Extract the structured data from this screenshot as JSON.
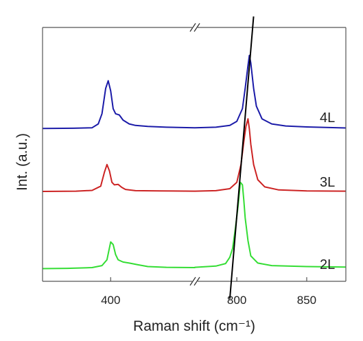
{
  "chart_data": {
    "type": "line",
    "xlabel": "Raman shift (cm⁻¹)",
    "ylabel": "Int. (a.u.)",
    "title": "",
    "x_axis_break": true,
    "x_segments": [
      {
        "xlim": [
          345,
          468
        ],
        "ticks": [
          {
            "value": 400,
            "label": "400"
          }
        ]
      },
      {
        "xlim": [
          770,
          878
        ],
        "ticks": [
          {
            "value": 800,
            "label": "800"
          },
          {
            "value": 850,
            "label": "850"
          }
        ]
      }
    ],
    "ylim": [
      0,
      10
    ],
    "grid": false,
    "legend": "none",
    "series": [
      {
        "name": "4L",
        "color": "#1a1aa8",
        "baseline": 6.02,
        "seg1": [
          [
            345,
            6.02
          ],
          [
            370,
            6.03
          ],
          [
            385,
            6.05
          ],
          [
            390,
            6.2
          ],
          [
            393,
            6.6
          ],
          [
            396,
            7.6
          ],
          [
            398,
            7.9
          ],
          [
            400,
            7.5
          ],
          [
            402,
            6.8
          ],
          [
            404,
            6.6
          ],
          [
            407,
            6.55
          ],
          [
            410,
            6.35
          ],
          [
            415,
            6.2
          ],
          [
            420,
            6.14
          ],
          [
            430,
            6.1
          ],
          [
            445,
            6.07
          ],
          [
            468,
            6.05
          ]
        ],
        "seg2": [
          [
            770,
            6.05
          ],
          [
            785,
            6.07
          ],
          [
            795,
            6.14
          ],
          [
            800,
            6.3
          ],
          [
            804,
            6.8
          ],
          [
            806,
            7.6
          ],
          [
            808,
            8.5
          ],
          [
            809,
            8.9
          ],
          [
            810,
            8.6
          ],
          [
            812,
            7.6
          ],
          [
            814,
            6.9
          ],
          [
            818,
            6.4
          ],
          [
            825,
            6.2
          ],
          [
            835,
            6.12
          ],
          [
            850,
            6.08
          ],
          [
            878,
            6.04
          ]
        ]
      },
      {
        "name": "3L",
        "color": "#cc2222",
        "baseline": 3.54,
        "seg1": [
          [
            345,
            3.54
          ],
          [
            372,
            3.55
          ],
          [
            385,
            3.58
          ],
          [
            392,
            3.75
          ],
          [
            395,
            4.3
          ],
          [
            397,
            4.6
          ],
          [
            399,
            4.35
          ],
          [
            401,
            3.9
          ],
          [
            403,
            3.8
          ],
          [
            406,
            3.82
          ],
          [
            409,
            3.7
          ],
          [
            412,
            3.62
          ],
          [
            420,
            3.57
          ],
          [
            440,
            3.56
          ],
          [
            468,
            3.55
          ]
        ],
        "seg2": [
          [
            770,
            3.55
          ],
          [
            785,
            3.57
          ],
          [
            795,
            3.65
          ],
          [
            800,
            3.9
          ],
          [
            803,
            4.6
          ],
          [
            805,
            5.5
          ],
          [
            806.5,
            6.1
          ],
          [
            808,
            6.4
          ],
          [
            809,
            6.0
          ],
          [
            810,
            5.4
          ],
          [
            812,
            4.6
          ],
          [
            815,
            4.0
          ],
          [
            820,
            3.72
          ],
          [
            830,
            3.6
          ],
          [
            850,
            3.56
          ],
          [
            878,
            3.55
          ]
        ]
      },
      {
        "name": "2L",
        "color": "#33dd33",
        "baseline": 0.5,
        "seg1": [
          [
            345,
            0.5
          ],
          [
            365,
            0.51
          ],
          [
            385,
            0.54
          ],
          [
            393,
            0.62
          ],
          [
            397,
            0.85
          ],
          [
            400,
            1.55
          ],
          [
            402,
            1.45
          ],
          [
            404,
            1.05
          ],
          [
            406,
            0.85
          ],
          [
            410,
            0.76
          ],
          [
            415,
            0.72
          ],
          [
            422,
            0.65
          ],
          [
            430,
            0.58
          ],
          [
            445,
            0.55
          ],
          [
            468,
            0.54
          ]
        ],
        "seg2": [
          [
            770,
            0.55
          ],
          [
            785,
            0.6
          ],
          [
            792,
            0.7
          ],
          [
            795,
            0.95
          ],
          [
            797,
            1.3
          ],
          [
            799,
            2.1
          ],
          [
            801,
            3.0
          ],
          [
            802.5,
            3.9
          ],
          [
            804,
            3.8
          ],
          [
            805,
            3.2
          ],
          [
            806,
            2.5
          ],
          [
            808,
            1.6
          ],
          [
            810,
            1.0
          ],
          [
            815,
            0.72
          ],
          [
            825,
            0.62
          ],
          [
            850,
            0.58
          ],
          [
            878,
            0.56
          ]
        ]
      }
    ],
    "trend_line": {
      "from": [
        795,
        -0.2
      ],
      "to": [
        812,
        10.0
      ],
      "color": "#000000"
    }
  }
}
